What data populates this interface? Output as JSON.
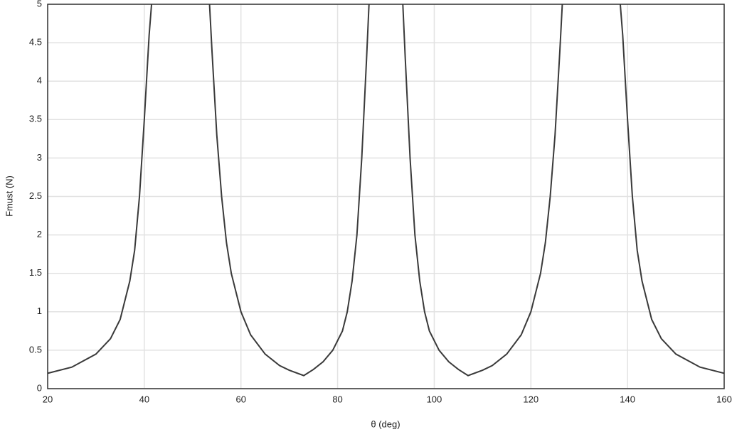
{
  "chart_data": {
    "type": "line",
    "x_label": "θ (deg)",
    "y_label": "Fmust (N)",
    "x": [
      20,
      25,
      30,
      33,
      35,
      37,
      38,
      39,
      40,
      41,
      41.5,
      47,
      53.5,
      54,
      55,
      56,
      57,
      58,
      60,
      62,
      65,
      68,
      70,
      73,
      75,
      77,
      79,
      81,
      82,
      83,
      84,
      85,
      86,
      86.5,
      90,
      93.5,
      94,
      95,
      96,
      97,
      98,
      99,
      101,
      103,
      105,
      107,
      110,
      112,
      115,
      118,
      120,
      122,
      123,
      124,
      125,
      126,
      126.5,
      132,
      138.5,
      139,
      140,
      141,
      142,
      143,
      145,
      147,
      150,
      155,
      160
    ],
    "series": [
      {
        "color": "#3a3a3a",
        "values": [
          0.2,
          0.28,
          0.45,
          0.65,
          0.9,
          1.4,
          1.8,
          2.5,
          3.5,
          4.6,
          5,
          null,
          5,
          4.4,
          3.3,
          2.5,
          1.9,
          1.5,
          1.0,
          0.7,
          0.45,
          0.3,
          0.24,
          0.17,
          0.25,
          0.35,
          0.5,
          0.75,
          1.0,
          1.4,
          2.0,
          3.0,
          4.3,
          5,
          null,
          5,
          4.3,
          3.0,
          2.0,
          1.4,
          1.0,
          0.75,
          0.5,
          0.35,
          0.25,
          0.17,
          0.24,
          0.3,
          0.45,
          0.7,
          1.0,
          1.5,
          1.9,
          2.5,
          3.3,
          4.4,
          5,
          null,
          5,
          4.6,
          3.5,
          2.5,
          1.8,
          1.4,
          0.9,
          0.65,
          0.45,
          0.28,
          0.2
        ]
      }
    ],
    "xlim": [
      20,
      160
    ],
    "xticks": [
      20,
      40,
      60,
      80,
      100,
      120,
      140,
      160
    ],
    "ylim": [
      0,
      5
    ],
    "yticks": [
      0,
      0.5,
      1,
      1.5,
      2,
      2.5,
      3,
      3.5,
      4,
      4.5,
      5
    ],
    "grid": true
  }
}
